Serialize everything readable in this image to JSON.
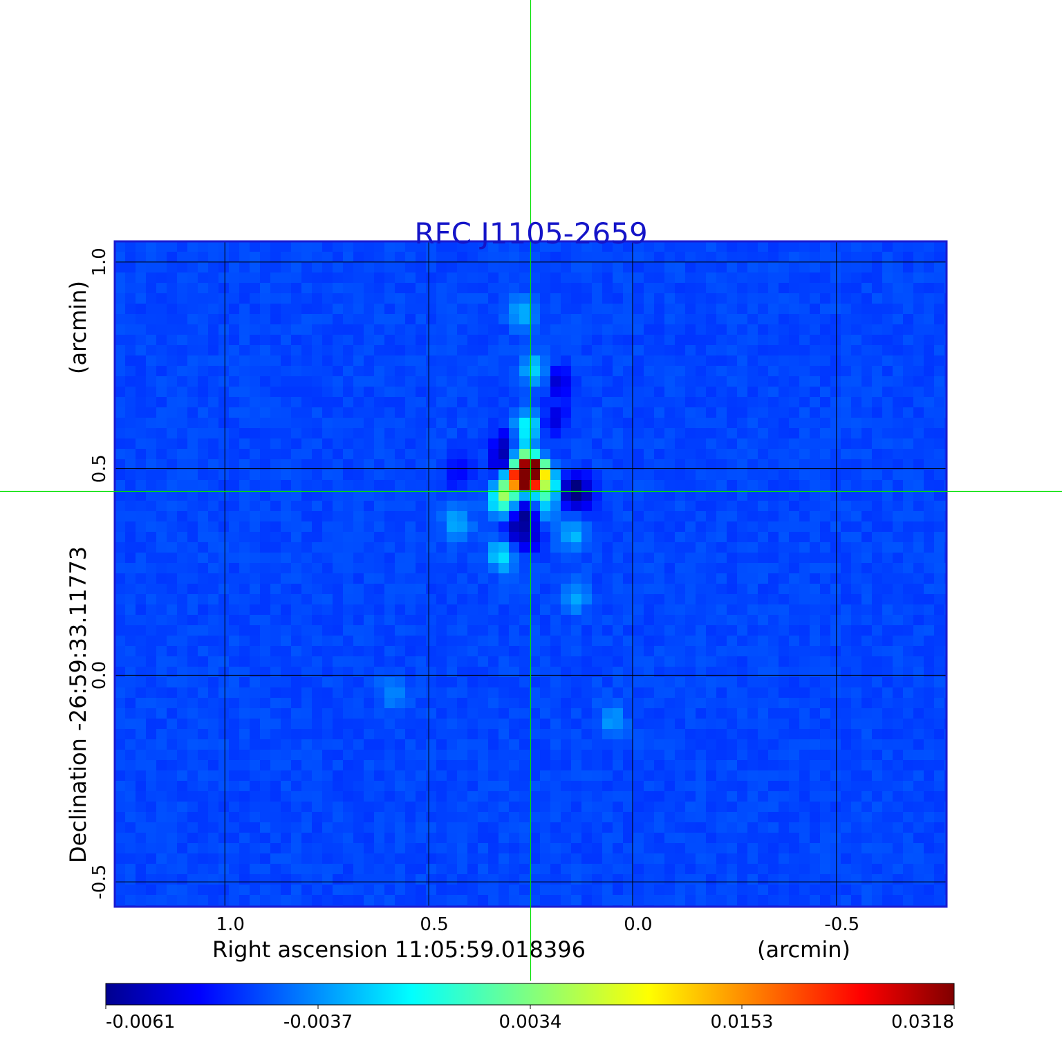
{
  "chart_data": {
    "type": "heatmap",
    "title": "RFC J1105-2659",
    "xlabel_main": "Right ascension  11:05:59.018396",
    "xlabel_unit": "(arcmin)",
    "ylabel_main": "Declination  -26:59:33.11773",
    "ylabel_unit": "(arcmin)",
    "x_ticks": [
      {
        "value": 1.0,
        "label": "1.0"
      },
      {
        "value": 0.5,
        "label": "0.5"
      },
      {
        "value": 0.0,
        "label": "0.0"
      },
      {
        "value": -0.5,
        "label": "-0.5"
      }
    ],
    "y_ticks": [
      {
        "value": 1.0,
        "label": "1.0"
      },
      {
        "value": 0.5,
        "label": "0.5"
      },
      {
        "value": 0.0,
        "label": "0.0"
      },
      {
        "value": -0.5,
        "label": "-0.5"
      }
    ],
    "xlim": [
      1.27,
      -0.77
    ],
    "ylim": [
      -0.56,
      1.05
    ],
    "grid": true,
    "crosshair": {
      "x": 0.25,
      "y": 0.445,
      "color": "#00e000"
    },
    "colormap": "jet",
    "colorbar": {
      "min": -0.0072,
      "max": 0.0318,
      "ticks": [
        {
          "value": -0.0061,
          "label": "-0.0061"
        },
        {
          "value": -0.0037,
          "label": "-0.0037"
        },
        {
          "value": 0.0034,
          "label": "0.0034"
        },
        {
          "value": 0.0153,
          "label": "0.0153"
        },
        {
          "value": 0.0318,
          "label": "0.0318"
        }
      ]
    },
    "background_level": 0.0003,
    "features": [
      {
        "x": 0.25,
        "y": 0.48,
        "value": 0.0318,
        "kind": "peak"
      },
      {
        "x": 0.27,
        "y": 0.48,
        "value": 0.029,
        "kind": "peak"
      },
      {
        "x": 0.24,
        "y": 0.5,
        "value": 0.024,
        "kind": "peak"
      },
      {
        "x": 0.21,
        "y": 0.46,
        "value": 0.011,
        "kind": "lobe"
      },
      {
        "x": 0.3,
        "y": 0.46,
        "value": 0.012,
        "kind": "lobe"
      },
      {
        "x": 0.27,
        "y": 0.52,
        "value": 0.012,
        "kind": "lobe"
      },
      {
        "x": 0.32,
        "y": 0.42,
        "value": 0.009,
        "kind": "lobe"
      },
      {
        "x": 0.26,
        "y": 0.6,
        "value": 0.008,
        "kind": "lobe"
      },
      {
        "x": 0.24,
        "y": 0.74,
        "value": 0.006,
        "kind": "lobe"
      },
      {
        "x": 0.27,
        "y": 0.88,
        "value": 0.005,
        "kind": "lobe"
      },
      {
        "x": 0.32,
        "y": 0.29,
        "value": 0.007,
        "kind": "lobe"
      },
      {
        "x": 0.43,
        "y": 0.37,
        "value": 0.005,
        "kind": "lobe"
      },
      {
        "x": 0.22,
        "y": 0.41,
        "value": 0.005,
        "kind": "lobe"
      },
      {
        "x": 0.15,
        "y": 0.34,
        "value": 0.005,
        "kind": "lobe"
      },
      {
        "x": 0.14,
        "y": 0.19,
        "value": 0.004,
        "kind": "lobe"
      },
      {
        "x": 0.05,
        "y": -0.11,
        "value": 0.004,
        "kind": "lobe"
      },
      {
        "x": 0.59,
        "y": -0.04,
        "value": 0.003,
        "kind": "lobe"
      },
      {
        "x": 0.15,
        "y": 0.45,
        "value": -0.0061,
        "kind": "hole"
      },
      {
        "x": 0.13,
        "y": 0.44,
        "value": -0.0055,
        "kind": "hole"
      },
      {
        "x": 0.32,
        "y": 0.51,
        "value": -0.0055,
        "kind": "hole"
      },
      {
        "x": 0.26,
        "y": 0.39,
        "value": -0.0058,
        "kind": "hole"
      },
      {
        "x": 0.29,
        "y": 0.35,
        "value": -0.0045,
        "kind": "hole"
      },
      {
        "x": 0.31,
        "y": 0.56,
        "value": -0.004,
        "kind": "hole"
      },
      {
        "x": 0.18,
        "y": 0.71,
        "value": -0.004,
        "kind": "hole"
      },
      {
        "x": 0.19,
        "y": 0.62,
        "value": -0.0035,
        "kind": "hole"
      },
      {
        "x": 0.43,
        "y": 0.49,
        "value": -0.003,
        "kind": "hole"
      },
      {
        "x": 0.25,
        "y": 0.33,
        "value": -0.003,
        "kind": "hole"
      }
    ]
  }
}
